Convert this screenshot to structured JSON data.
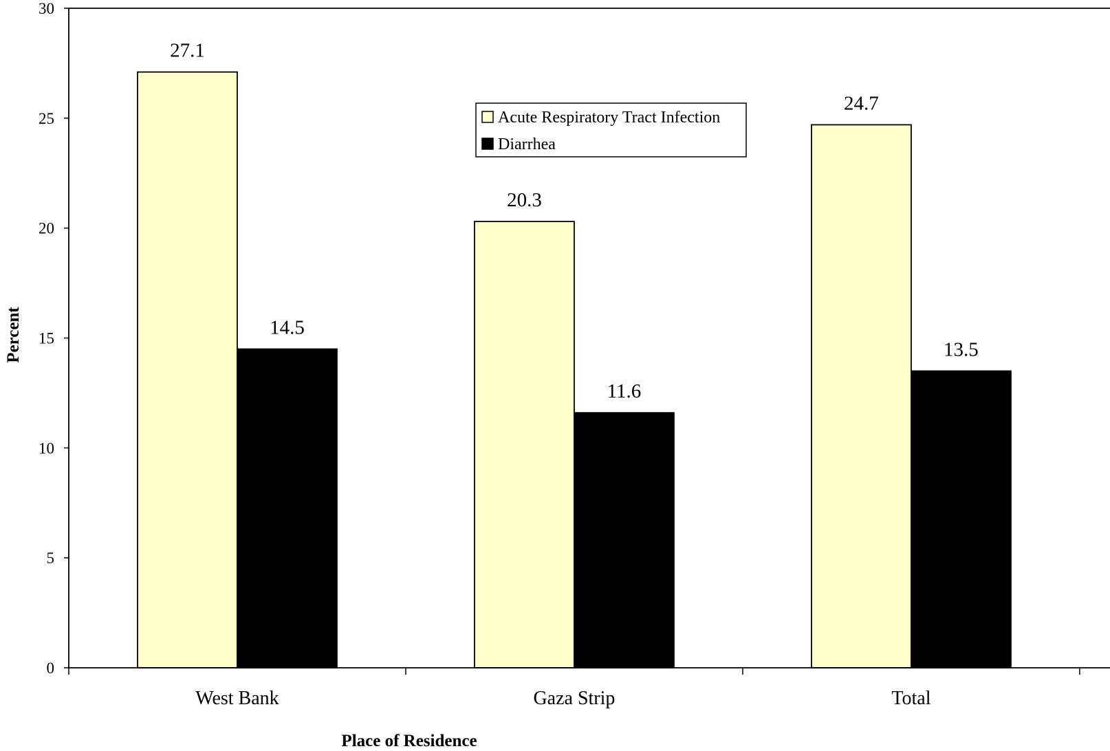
{
  "chart_data": {
    "type": "bar",
    "xlabel": "Place of Residence",
    "ylabel": "Percent",
    "categories": [
      "West Bank",
      "Gaza Strip",
      "Total"
    ],
    "series": [
      {
        "name": "Acute Respiratory Tract Infection",
        "color": "#FFFFCC",
        "values": [
          27.1,
          20.3,
          24.7
        ]
      },
      {
        "name": "Diarrhea",
        "color": "#000000",
        "values": [
          14.5,
          11.6,
          13.5
        ]
      }
    ],
    "ylim": [
      0,
      30
    ],
    "yticks": [
      0,
      5,
      10,
      15,
      20,
      25,
      30
    ],
    "grid": false,
    "legend_position": "top-center",
    "data_labels": true
  }
}
